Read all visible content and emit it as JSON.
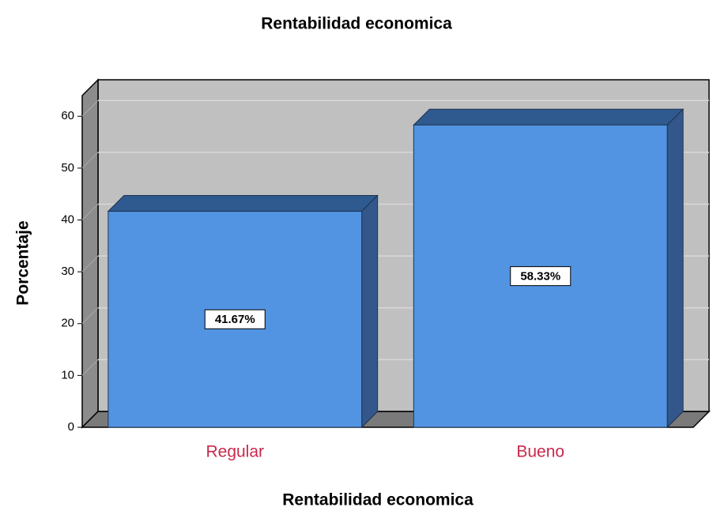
{
  "chart_data": {
    "type": "bar3d",
    "title": "Rentabilidad economica",
    "x_label": "Rentabilidad economica",
    "y_label": "Porcentaje",
    "categories": [
      "Regular",
      "Bueno"
    ],
    "values": [
      41.67,
      58.33
    ],
    "value_labels": [
      "41.67%",
      "58.33%"
    ],
    "color": "#5294e2",
    "ylim": [
      0,
      64
    ],
    "yticks": [
      0,
      10,
      20,
      30,
      40,
      50,
      60
    ],
    "grid": true
  }
}
